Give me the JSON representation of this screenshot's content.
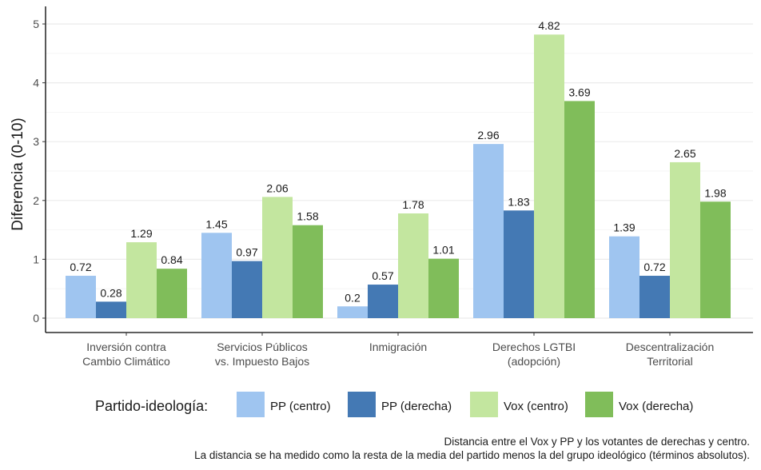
{
  "chart_data": {
    "type": "bar",
    "ylabel": "Diferencia (0-10)",
    "xlabel": "",
    "ylim": [
      0,
      5.2
    ],
    "yticks": [
      "0",
      "1",
      "2",
      "3",
      "4",
      "5"
    ],
    "grid": true,
    "legend_position": "bottom",
    "legend_title": "Partido-ideología:",
    "categories": [
      [
        "Inversión contra",
        "Cambio Climático"
      ],
      [
        "Servicios Públicos",
        "vs. Impuesto Bajos"
      ],
      [
        "Inmigración"
      ],
      [
        "Derechos LGTBI",
        "(adopción)"
      ],
      [
        "Descentralización",
        "Territorial"
      ]
    ],
    "series": [
      {
        "name": "PP (centro)",
        "color": "#9fc5f0",
        "values": [
          0.72,
          1.45,
          0.2,
          2.96,
          1.39
        ],
        "labels": [
          "0.72",
          "1.45",
          "0.2",
          "2.96",
          "1.39"
        ]
      },
      {
        "name": "PP (derecha)",
        "color": "#4479b4",
        "values": [
          0.28,
          0.97,
          0.57,
          1.83,
          0.72
        ],
        "labels": [
          "0.28",
          "0.97",
          "0.57",
          "1.83",
          "0.72"
        ]
      },
      {
        "name": "Vox (centro)",
        "color": "#c3e69f",
        "values": [
          1.29,
          2.06,
          1.78,
          4.82,
          2.65
        ],
        "labels": [
          "1.29",
          "2.06",
          "1.78",
          "4.82",
          "2.65"
        ]
      },
      {
        "name": "Vox (derecha)",
        "color": "#80bd5a",
        "values": [
          0.84,
          1.58,
          1.01,
          3.69,
          1.98
        ],
        "labels": [
          "0.84",
          "1.58",
          "1.01",
          "3.69",
          "1.98"
        ]
      }
    ],
    "caption": [
      "Distancia entre el Vox y PP y los votantes de derechas y centro.",
      "La distancia se ha medido como la resta de la media del partido menos la del grupo ideológico (términos absolutos)."
    ]
  }
}
